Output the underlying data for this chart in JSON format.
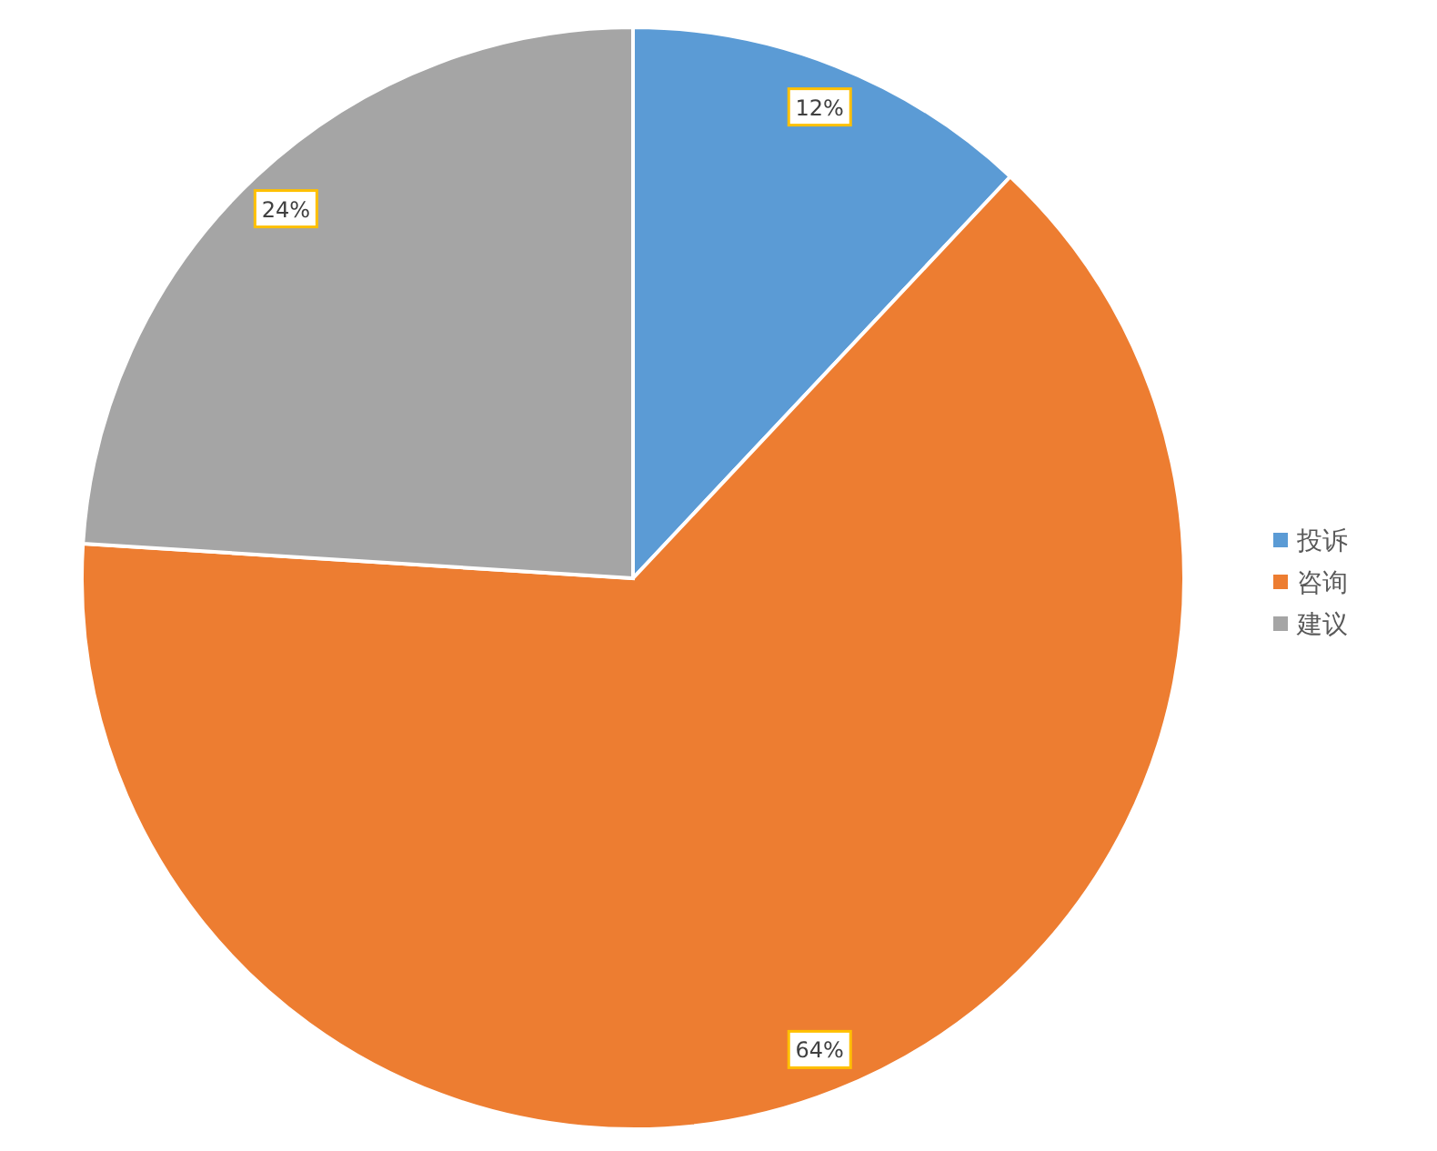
{
  "chart_data": {
    "type": "pie",
    "categories": [
      "投诉",
      "咨询",
      "建议"
    ],
    "values": [
      12,
      64,
      24
    ],
    "colors": [
      "#5b9bd5",
      "#ed7d31",
      "#a5a5a5"
    ],
    "value_labels": [
      "12%",
      "64%",
      "24%"
    ],
    "legend": "right"
  }
}
